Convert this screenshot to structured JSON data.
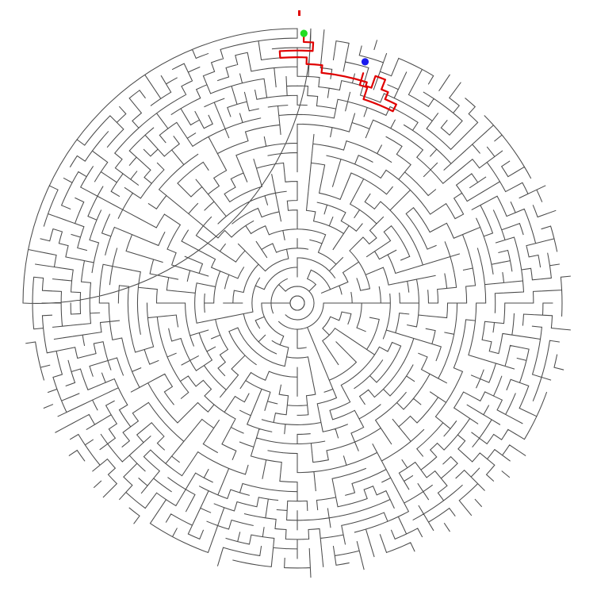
{
  "maze": {
    "shape": "circular",
    "ring_count": 28,
    "rng_seed": 73715,
    "colors": {
      "background": "#ffffff",
      "walls": "#4a4a4a",
      "solution_path": "#e00000",
      "start_marker": "#22dd22",
      "end_marker": "#1a1aee",
      "entrance_tick": "#e00000"
    },
    "markers": {
      "start": {
        "ring": 27,
        "angle_deg": -88.6
      },
      "end": {
        "ring": 25,
        "angle_deg": -74.3
      }
    },
    "solution_path_points": [
      {
        "ring": 27.5,
        "angle_deg": -88.6
      },
      {
        "ring": 26.6,
        "angle_deg": -88.6
      },
      {
        "ring": 26.6,
        "angle_deg": -86.5
      },
      {
        "ring": 25.7,
        "angle_deg": -86.5
      },
      {
        "ring": 25.7,
        "angle_deg": -94.0
      },
      {
        "ring": 25.0,
        "angle_deg": -94.0
      },
      {
        "ring": 25.0,
        "angle_deg": -87.8
      },
      {
        "ring": 24.3,
        "angle_deg": -87.8
      },
      {
        "ring": 24.3,
        "angle_deg": -84.0
      },
      {
        "ring": 23.5,
        "angle_deg": -84.0
      },
      {
        "ring": 23.5,
        "angle_deg": -72.5
      },
      {
        "ring": 23.1,
        "angle_deg": -72.5
      },
      {
        "ring": 23.1,
        "angle_deg": -71.0
      },
      {
        "ring": 24.4,
        "angle_deg": -71.0
      },
      {
        "ring": 24.4,
        "angle_deg": -68.5
      },
      {
        "ring": 23.3,
        "angle_deg": -68.5
      },
      {
        "ring": 23.3,
        "angle_deg": -66.7
      },
      {
        "ring": 22.5,
        "angle_deg": -66.7
      },
      {
        "ring": 22.5,
        "angle_deg": -63.5
      },
      {
        "ring": 21.7,
        "angle_deg": -63.5
      },
      {
        "ring": 21.7,
        "angle_deg": -72.0
      },
      {
        "ring": 23.0,
        "angle_deg": -72.0
      },
      {
        "ring": 23.0,
        "angle_deg": -74.0
      },
      {
        "ring": 24.3,
        "angle_deg": -74.0
      }
    ]
  }
}
